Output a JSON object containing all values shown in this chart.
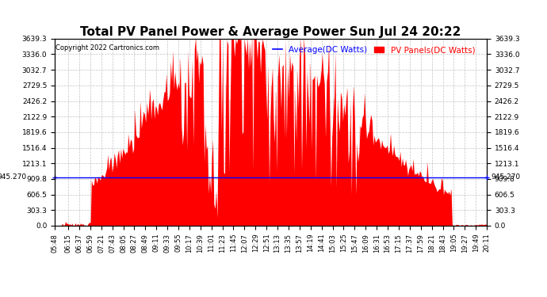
{
  "title": "Total PV Panel Power & Average Power Sun Jul 24 20:22",
  "copyright": "Copyright 2022 Cartronics.com",
  "legend_average": "Average(DC Watts)",
  "legend_pv": "PV Panels(DC Watts)",
  "average_value": 945.27,
  "y_max": 3639.3,
  "y_min": 0.0,
  "y_ticks": [
    0.0,
    303.3,
    606.5,
    909.8,
    1213.1,
    1516.4,
    1819.6,
    2122.9,
    2426.2,
    2729.5,
    3032.7,
    3336.0,
    3639.3
  ],
  "background_color": "#ffffff",
  "bar_color": "#ff0000",
  "average_line_color": "#0000ff",
  "grid_color": "#aaaaaa",
  "title_color": "#000000",
  "x_labels": [
    "05:48",
    "06:15",
    "06:37",
    "06:59",
    "07:21",
    "07:43",
    "08:05",
    "08:27",
    "08:49",
    "09:11",
    "09:33",
    "09:55",
    "10:17",
    "10:39",
    "11:01",
    "11:23",
    "11:45",
    "12:07",
    "12:29",
    "12:51",
    "13:13",
    "13:35",
    "13:57",
    "14:19",
    "14:41",
    "15:03",
    "15:25",
    "15:47",
    "16:09",
    "16:31",
    "16:53",
    "17:15",
    "17:37",
    "17:59",
    "18:21",
    "18:43",
    "19:05",
    "19:27",
    "19:49",
    "20:11"
  ]
}
